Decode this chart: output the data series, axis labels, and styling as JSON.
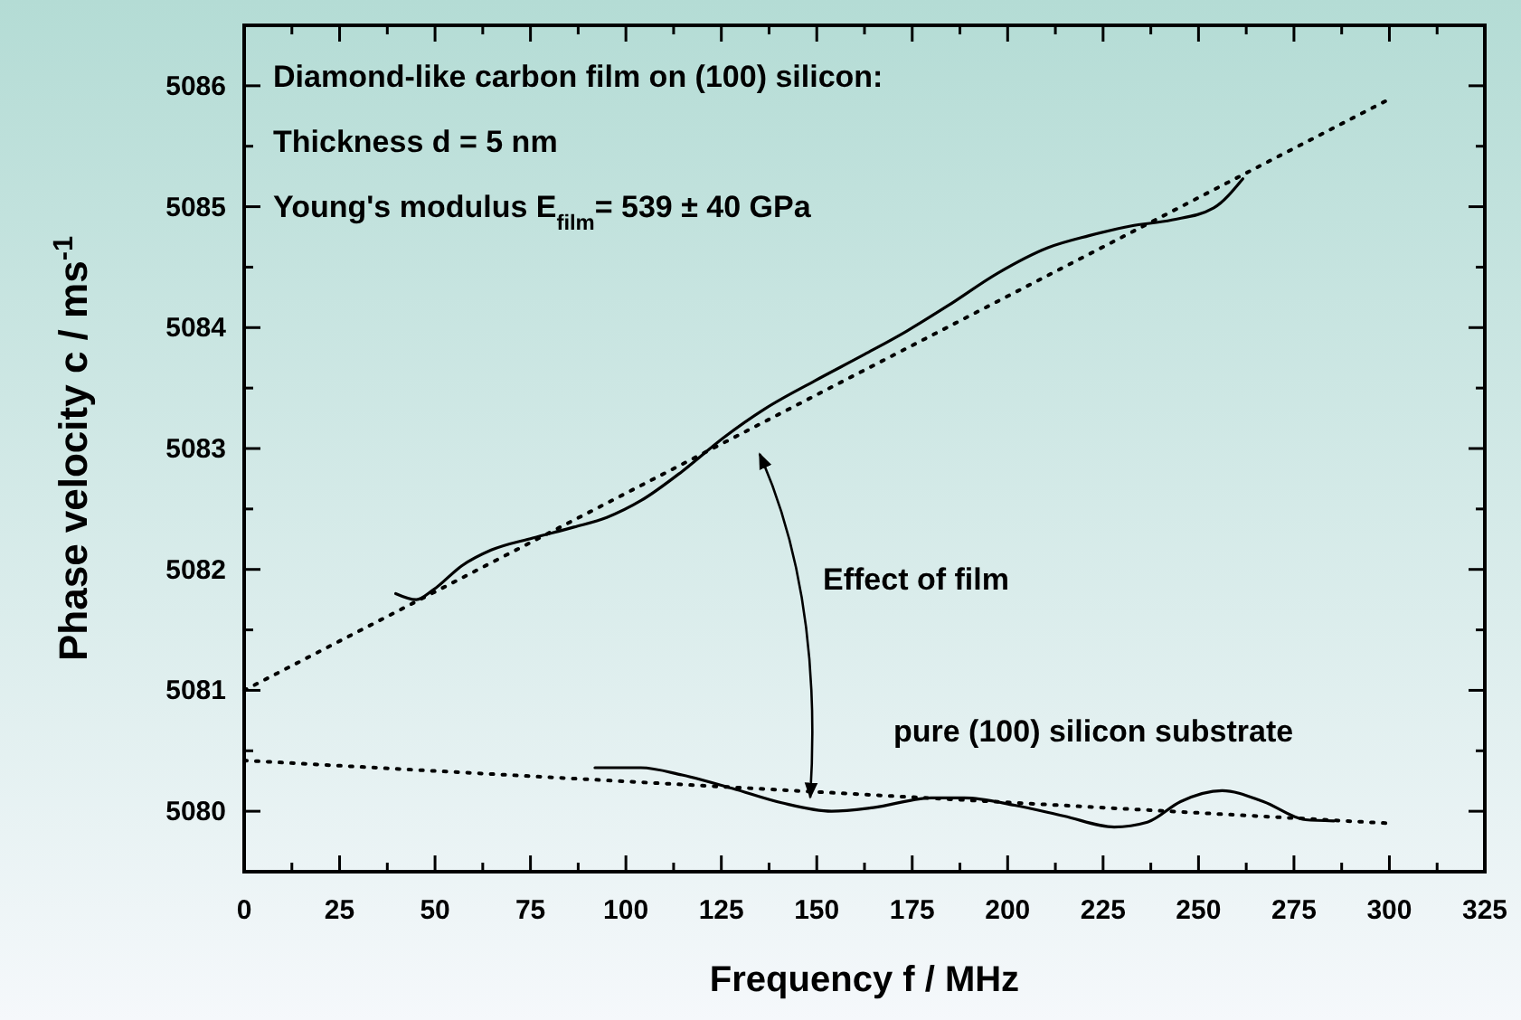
{
  "chart_data": {
    "type": "line",
    "xlabel": "Frequency f / MHz",
    "ylabel": "Phase velocity c / ms$^{-1}$",
    "xlim": [
      0,
      325
    ],
    "ylim": [
      5079.5,
      5086.5
    ],
    "xticks": [
      0,
      {
        "value": 12.5,
        "label": null
      },
      25,
      {
        "value": 37.5,
        "label": null
      },
      50,
      {
        "value": 62.5,
        "label": null
      },
      75,
      {
        "value": 87.5,
        "label": null
      },
      100,
      {
        "value": 112.5,
        "label": null
      },
      125,
      {
        "value": 137.5,
        "label": null
      },
      150,
      {
        "value": 162.5,
        "label": null
      },
      175,
      {
        "value": 187.5,
        "label": null
      },
      200,
      {
        "value": 212.5,
        "label": null
      },
      225,
      {
        "value": 237.5,
        "label": null
      },
      250,
      {
        "value": 262.5,
        "label": null
      },
      275,
      {
        "value": 287.5,
        "label": null
      },
      300,
      {
        "value": 312.5,
        "label": null
      },
      325
    ],
    "yticks": [
      {
        "value": 5079.5,
        "label": null
      },
      5080,
      {
        "value": 5080.5,
        "label": null
      },
      5081,
      {
        "value": 5081.5,
        "label": null
      },
      5082,
      {
        "value": 5082.5,
        "label": null
      },
      5083,
      {
        "value": 5083.5,
        "label": null
      },
      5084,
      {
        "value": 5084.5,
        "label": null
      },
      5085,
      {
        "value": 5085.5,
        "label": null
      },
      5086,
      {
        "value": 5086.5,
        "label": null
      }
    ],
    "series": [
      {
        "color": "#000000",
        "line_style": "solid",
        "x": [
          39.7,
          45.1,
          49.5,
          57,
          64.7,
          75.6,
          86.4,
          95,
          104,
          114.7,
          125.6,
          136.5,
          149.5,
          162.6,
          173.5,
          184.3,
          197.4,
          210.5,
          221.3,
          232.2,
          243,
          254,
          261.6
        ],
        "values": [
          5081.8,
          5081.75,
          5081.83,
          5082.03,
          5082.16,
          5082.26,
          5082.35,
          5082.43,
          5082.57,
          5082.81,
          5083.09,
          5083.33,
          5083.56,
          5083.78,
          5083.97,
          5084.18,
          5084.45,
          5084.66,
          5084.76,
          5084.84,
          5084.89,
          5084.99,
          5085.23
        ]
      },
      {
        "color": "#000000",
        "line_style": "dotted",
        "x": [
          0,
          300
        ],
        "values": [
          5081.0,
          5085.89
        ]
      },
      {
        "color": "#000000",
        "line_style": "solid",
        "x": [
          91.9,
          103.9,
          114.7,
          127.8,
          140.8,
          153.9,
          164.8,
          180,
          188.7,
          201.8,
          214.8,
          227.9,
          236.6,
          245.3,
          256.2,
          267,
          278,
          285.5
        ],
        "values": [
          5080.36,
          5080.36,
          5080.3,
          5080.19,
          5080.07,
          5080.0,
          5080.03,
          5080.11,
          5080.11,
          5080.05,
          5079.96,
          5079.87,
          5079.91,
          5080.08,
          5080.17,
          5080.08,
          5079.93,
          5079.92
        ]
      },
      {
        "color": "#000000",
        "line_style": "dotted",
        "x": [
          0,
          300
        ],
        "values": [
          5080.42,
          5079.9
        ]
      }
    ],
    "marker": "none",
    "grid": false,
    "annotations": [
      "Diamond-like carbon film on (100) silicon:",
      "Thickness d = 5 nm",
      "Young's modulus E$_{film}$= 539 ± 40 GPa",
      "Effect of film",
      "pure (100) silicon substrate"
    ]
  }
}
